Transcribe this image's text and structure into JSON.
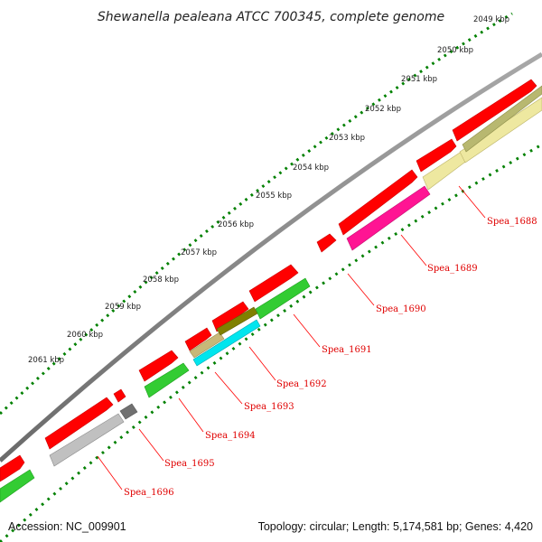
{
  "title": "Shewanella pealeana ATCC 700345, complete genome",
  "footer": {
    "accession": "Accession: NC_009901",
    "summary": "Topology: circular; Length: 5,174,581 bp; Genes: 4,420"
  },
  "kbp_ticks": [
    "2049 kbp",
    "2050 kbp",
    "2051 kbp",
    "2052 kbp",
    "2053 kbp",
    "2054 kbp",
    "2055 kbp",
    "2056 kbp",
    "2057 kbp",
    "2058 kbp",
    "2059 kbp",
    "2060 kbp",
    "2061 kbp"
  ],
  "gene_labels": [
    "Spea_1688",
    "Spea_1689",
    "Spea_1690",
    "Spea_1691",
    "Spea_1692",
    "Spea_1693",
    "Spea_1694",
    "Spea_1695",
    "Spea_1696"
  ],
  "colors": {
    "cds": "#ff0000",
    "backbone": "#808080",
    "cog_green": "#33cc33",
    "cog_khaki": "#eee8a0",
    "cog_magenta": "#ff1493",
    "cog_cyan": "#00e5ee",
    "cog_olive": "#808000",
    "cog_tan": "#c8b878",
    "cog_gray": "#b8b8b8",
    "cog_darkgray": "#707070",
    "ticks": "#008000",
    "label_lines": "#ff0000"
  }
}
